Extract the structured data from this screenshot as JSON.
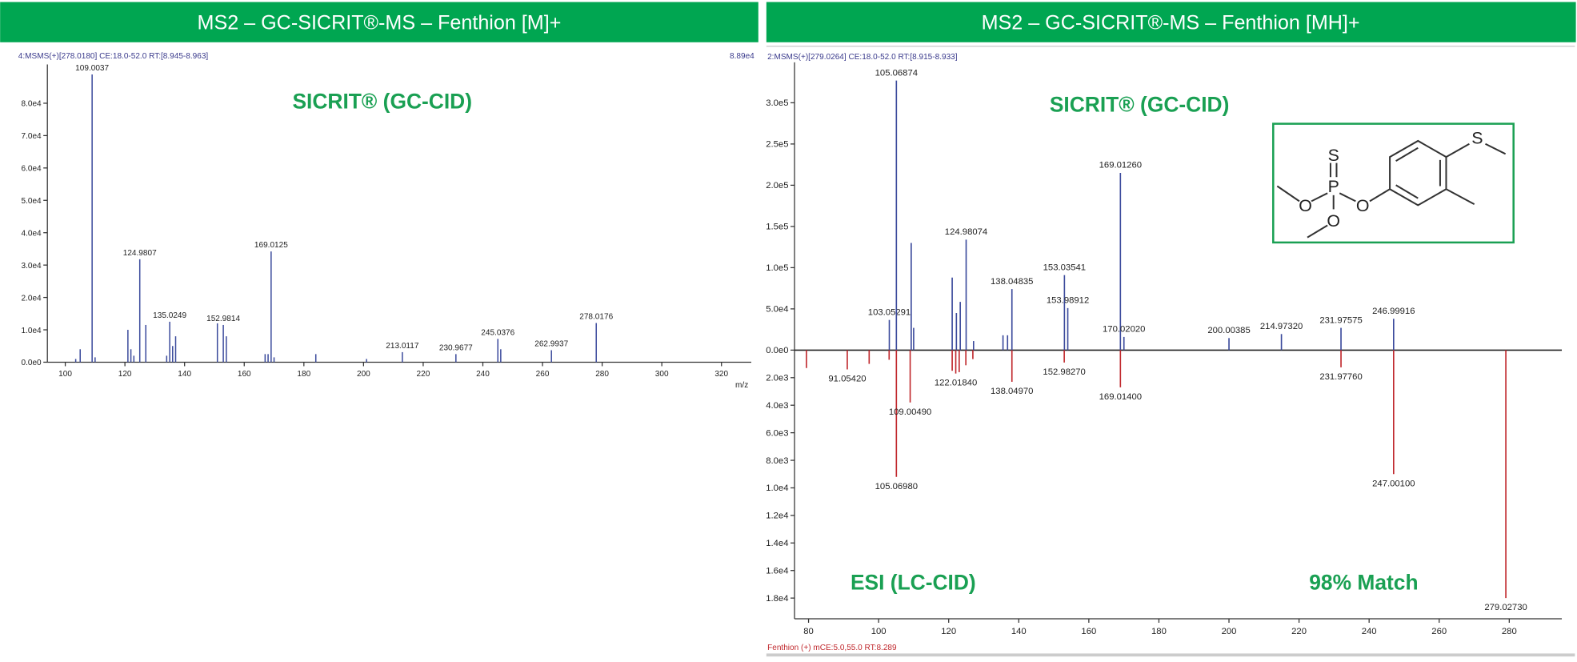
{
  "chart_data": [
    {
      "type": "stick",
      "title": "MS2 – GC-SICRIT®-MS – Fenthion [M]+",
      "header": "4:MSMS(+)[278.0180] CE:18.0-52.0 RT:[8.945-8.963]",
      "corner_label": "8.89e4",
      "annotation": "SICRIT® (GC-CID)",
      "xlabel": "m/z",
      "color": "#3b4a9c",
      "x": [
        103.5,
        105.0,
        109.0037,
        110.0,
        121.0,
        122.0,
        123.0,
        124.9807,
        127.0,
        134.0,
        135.0249,
        136.0,
        137.0,
        151.0,
        152.9814,
        154.0,
        167.0,
        168.0,
        169.0125,
        170.0,
        184.0,
        201.0,
        213.0117,
        230.9677,
        245.0376,
        246.0,
        262.9937,
        278.0176
      ],
      "values": [
        1000,
        4000,
        88900,
        1500,
        10000,
        4000,
        2000,
        31800,
        11500,
        2000,
        12500,
        5000,
        8000,
        12000,
        11500,
        8000,
        2500,
        2500,
        34200,
        1500,
        2500,
        1000,
        3100,
        2500,
        7200,
        4000,
        3700,
        12100
      ],
      "peak_labels": [
        null,
        null,
        "109.0037",
        null,
        null,
        null,
        null,
        "124.9807",
        null,
        null,
        "135.0249",
        null,
        null,
        null,
        "152.9814",
        null,
        null,
        null,
        "169.0125",
        null,
        null,
        null,
        "213.0117",
        "230.9677",
        "245.0376",
        null,
        "262.9937",
        "278.0176"
      ],
      "xlim": [
        94,
        330
      ],
      "xticks": [
        100,
        120,
        140,
        160,
        180,
        200,
        220,
        240,
        260,
        280,
        300,
        320
      ],
      "ylim": [
        0,
        92000
      ],
      "yticks": [
        {
          "value": 0,
          "label": "0.0e0"
        },
        {
          "value": 10000,
          "label": "1.0e4"
        },
        {
          "value": 20000,
          "label": "2.0e4"
        },
        {
          "value": 30000,
          "label": "3.0e4"
        },
        {
          "value": 40000,
          "label": "4.0e4"
        },
        {
          "value": 50000,
          "label": "5.0e4"
        },
        {
          "value": 60000,
          "label": "6.0e4"
        },
        {
          "value": 70000,
          "label": "7.0e4"
        },
        {
          "value": 80000,
          "label": "8.0e4"
        }
      ]
    },
    {
      "type": "mirror",
      "title": "MS2 – GC-SICRIT®-MS – Fenthion [MH]+",
      "header": "2:MSMS(+)[279.0264] CE:18.0-52.0 RT:[8.915-8.933]",
      "footer": "Fenthion (+) mCE:5.0,55.0 RT:8.289",
      "annotations": [
        "SICRIT® (GC-CID)",
        "ESI (LC-CID)",
        "98% Match"
      ],
      "structure_labels": [
        "S",
        "P",
        "O",
        "O",
        "O",
        "S"
      ],
      "series": [
        {
          "color": "#3b4a9c",
          "x": [
            103.05291,
            105.06874,
            109.3,
            110.0,
            121.0,
            122.2,
            123.3,
            124.98074,
            127.1,
            135.5,
            136.8,
            138.04835,
            153.03541,
            153.98912,
            169.0126,
            170.0202,
            200.00385,
            214.9732,
            231.97575,
            246.99916
          ],
          "values": [
            36600,
            327000,
            130000,
            27000,
            88000,
            45000,
            58500,
            134000,
            11000,
            18000,
            18000,
            74000,
            91000,
            51000,
            215000,
            16000,
            14600,
            19500,
            27000,
            38000
          ],
          "peak_labels": [
            "103.05291",
            "105.06874",
            null,
            null,
            null,
            null,
            null,
            "124.98074",
            null,
            null,
            null,
            "138.04835",
            "153.03541",
            "153.98912",
            "169.01260",
            "170.02020",
            "200.00385",
            "214.97320",
            "231.97575",
            "246.99916"
          ]
        },
        {
          "color": "#c0282d",
          "axis": "y2",
          "x": [
            79.4,
            91.0542,
            97.3,
            103.0,
            105.0698,
            109.0049,
            121.0,
            122.0184,
            123.0,
            124.9,
            126.9,
            138.0497,
            152.9827,
            169.014,
            231.9776,
            247.001,
            279.0273
          ],
          "values": [
            1300,
            1400,
            1000,
            700,
            9200,
            3800,
            1500,
            1700,
            1600,
            1100,
            650,
            2300,
            900,
            2700,
            1250,
            9000,
            18000
          ],
          "peak_labels": [
            null,
            "91.05420",
            null,
            null,
            "105.06980",
            "109.00490",
            null,
            "122.01840",
            null,
            null,
            null,
            "138.04970",
            "152.98270",
            "169.01400",
            "231.97760",
            "247.00100",
            "279.02730"
          ]
        }
      ],
      "xlim": [
        76,
        295
      ],
      "xticks": [
        80,
        100,
        120,
        140,
        160,
        180,
        200,
        220,
        240,
        260,
        280
      ],
      "ylim": [
        0,
        349000
      ],
      "yticks": [
        {
          "value": 0,
          "label": "0.0e0"
        },
        {
          "value": 50000,
          "label": "5.0e4"
        },
        {
          "value": 100000,
          "label": "1.0e5"
        },
        {
          "value": 150000,
          "label": "1.5e5"
        },
        {
          "value": 200000,
          "label": "2.0e5"
        },
        {
          "value": 250000,
          "label": "2.5e5"
        },
        {
          "value": 300000,
          "label": "3.0e5"
        }
      ],
      "y2lim": [
        0,
        19500
      ],
      "y2ticks": [
        {
          "value": 2000,
          "label": "2.0e3"
        },
        {
          "value": 4000,
          "label": "4.0e3"
        },
        {
          "value": 6000,
          "label": "6.0e3"
        },
        {
          "value": 8000,
          "label": "8.0e3"
        },
        {
          "value": 10000,
          "label": "1.0e4"
        },
        {
          "value": 12000,
          "label": "1.2e4"
        },
        {
          "value": 14000,
          "label": "1.4e4"
        },
        {
          "value": 16000,
          "label": "1.6e4"
        },
        {
          "value": 18000,
          "label": "1.8e4"
        }
      ]
    }
  ]
}
